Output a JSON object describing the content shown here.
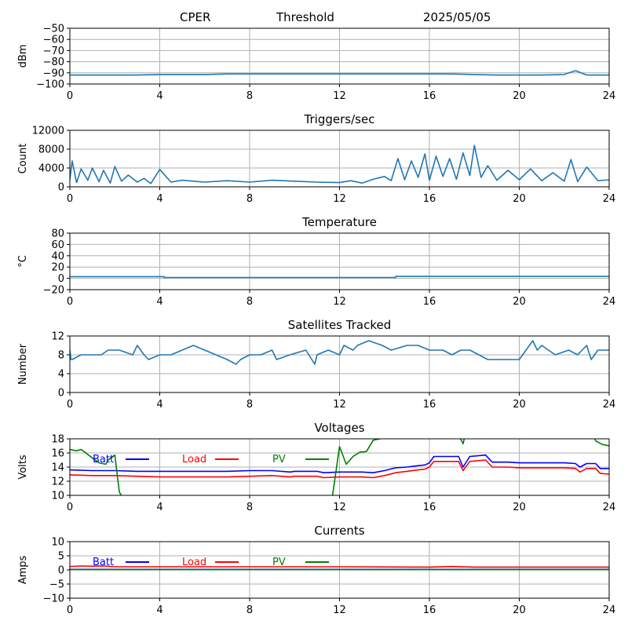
{
  "header": {
    "site": "CPER",
    "mode": "Threshold",
    "date": "2025/05/05"
  },
  "colors": {
    "series": "#1f77b4",
    "batt": "#0000ff",
    "load": "#ff0000",
    "pv": "#008000",
    "grid": "#b0b0b0"
  },
  "chart_data": [
    {
      "id": "threshold",
      "type": "line",
      "title": "",
      "xlabel": "",
      "ylabel": "dBm",
      "xlim": [
        0,
        24
      ],
      "ylim": [
        -100,
        -50
      ],
      "xticks": [
        0,
        4,
        8,
        12,
        16,
        20,
        24
      ],
      "yticks": [
        -100,
        -90,
        -80,
        -70,
        -60,
        -50
      ],
      "grid": true,
      "series": [
        {
          "color": "#1f77b4",
          "x": [
            0,
            1,
            2,
            3,
            4,
            5,
            6,
            7,
            8,
            9,
            10,
            11,
            12,
            13,
            14,
            15,
            16,
            17,
            18,
            19,
            20,
            21,
            22,
            22.5,
            23,
            24
          ],
          "y": [
            -92,
            -92,
            -92,
            -92,
            -91.5,
            -91.5,
            -91.5,
            -91,
            -91,
            -91,
            -91,
            -91,
            -91,
            -91,
            -91,
            -91,
            -91,
            -91,
            -91.5,
            -92,
            -92,
            -92,
            -91.5,
            -88,
            -92,
            -92
          ]
        }
      ]
    },
    {
      "id": "triggers",
      "type": "line",
      "title": "Triggers/sec",
      "xlabel": "",
      "ylabel": "Count",
      "xlim": [
        0,
        24
      ],
      "ylim": [
        0,
        12000
      ],
      "xticks": [
        0,
        4,
        8,
        12,
        16,
        20,
        24
      ],
      "yticks": [
        0,
        4000,
        8000,
        12000
      ],
      "grid": true,
      "series": [
        {
          "color": "#1f77b4",
          "x": [
            0,
            0.1,
            0.3,
            0.5,
            0.8,
            1,
            1.3,
            1.5,
            1.8,
            2,
            2.3,
            2.6,
            3,
            3.3,
            3.6,
            4,
            4.5,
            5,
            6,
            7,
            8,
            9,
            10,
            11,
            12,
            12.5,
            13,
            13.5,
            14,
            14.3,
            14.6,
            14.9,
            15.2,
            15.5,
            15.8,
            16,
            16.3,
            16.6,
            16.9,
            17.2,
            17.5,
            17.8,
            18,
            18.3,
            18.6,
            19,
            19.5,
            20,
            20.5,
            21,
            21.5,
            22,
            22.3,
            22.6,
            23,
            23.5,
            24
          ],
          "y": [
            1500,
            5500,
            900,
            3800,
            1400,
            4000,
            1100,
            3500,
            800,
            4300,
            1200,
            2500,
            1000,
            1800,
            700,
            3700,
            1000,
            1400,
            1000,
            1300,
            1000,
            1400,
            1200,
            1000,
            900,
            1300,
            800,
            1600,
            2200,
            1300,
            6000,
            1500,
            5500,
            2000,
            7000,
            1400,
            6500,
            2200,
            6000,
            1600,
            7200,
            2400,
            8800,
            2000,
            4500,
            1400,
            3500,
            1500,
            3800,
            1300,
            3000,
            1200,
            5800,
            1100,
            4200,
            1300,
            1500
          ]
        }
      ]
    },
    {
      "id": "temperature",
      "type": "line",
      "title": "Temperature",
      "xlabel": "",
      "ylabel": "°C",
      "xlim": [
        0,
        24
      ],
      "ylim": [
        -20,
        80
      ],
      "xticks": [
        0,
        4,
        8,
        12,
        16,
        20,
        24
      ],
      "yticks": [
        -20,
        0,
        20,
        40,
        60,
        80
      ],
      "grid": true,
      "series": [
        {
          "color": "#1f77b4",
          "x": [
            0,
            4.2,
            4.2,
            14.5,
            14.5,
            24
          ],
          "y": [
            3,
            3,
            1.5,
            1.5,
            3.5,
            3.5
          ]
        }
      ]
    },
    {
      "id": "satellites",
      "type": "line",
      "title": "Satellites Tracked",
      "xlabel": "",
      "ylabel": "Number",
      "xlim": [
        0,
        24
      ],
      "ylim": [
        0,
        12
      ],
      "xticks": [
        0,
        4,
        8,
        12,
        16,
        20,
        24
      ],
      "yticks": [
        0,
        4,
        8,
        12
      ],
      "grid": true,
      "series": [
        {
          "color": "#1f77b4",
          "x": [
            0,
            0.05,
            0.1,
            0.5,
            1.4,
            1.7,
            2.2,
            2.8,
            3.0,
            3.3,
            3.5,
            4,
            4.5,
            5,
            5.5,
            6,
            6.5,
            7,
            7.4,
            7.6,
            8,
            8.5,
            9,
            9.2,
            9.8,
            10.5,
            10.9,
            11,
            11.5,
            12,
            12.2,
            12.6,
            12.8,
            13.3,
            13.9,
            14.3,
            15,
            15.5,
            16,
            16.6,
            17,
            17.4,
            17.8,
            18.2,
            18.6,
            19,
            19.6,
            20,
            20.6,
            20.8,
            21,
            21.6,
            22.2,
            22.6,
            23,
            23.2,
            23.5,
            24
          ],
          "y": [
            9,
            7,
            7,
            8,
            8,
            9,
            9,
            8,
            10,
            8,
            7,
            8,
            8,
            9,
            10,
            9,
            8,
            7,
            6,
            7,
            8,
            8,
            9,
            7,
            8,
            9,
            6,
            8,
            9,
            8,
            10,
            9,
            10,
            11,
            10,
            9,
            10,
            10,
            9,
            9,
            8,
            9,
            9,
            8,
            7,
            7,
            7,
            7,
            11,
            9,
            10,
            8,
            9,
            8,
            10,
            7,
            9,
            9
          ]
        }
      ]
    },
    {
      "id": "voltages",
      "type": "line",
      "title": "Voltages",
      "xlabel": "",
      "ylabel": "Volts",
      "xlim": [
        0,
        24
      ],
      "ylim": [
        10,
        18
      ],
      "xticks": [
        0,
        4,
        8,
        12,
        16,
        20,
        24
      ],
      "yticks": [
        10,
        12,
        14,
        16,
        18
      ],
      "grid": true,
      "legend": "top-left",
      "series": [
        {
          "name": "Batt",
          "color": "#0000ff",
          "x": [
            0,
            1,
            2,
            3,
            4,
            5,
            6,
            7,
            8,
            9,
            9.8,
            10,
            11,
            11.3,
            12,
            13,
            13.5,
            14,
            14.5,
            15,
            15.5,
            15.8,
            16,
            16.2,
            17,
            17.3,
            17.5,
            17.8,
            18.5,
            18.8,
            19.5,
            20,
            21,
            22,
            22.5,
            22.7,
            23,
            23.4,
            23.6,
            24
          ],
          "y": [
            13.6,
            13.5,
            13.5,
            13.4,
            13.4,
            13.4,
            13.4,
            13.4,
            13.5,
            13.5,
            13.3,
            13.4,
            13.4,
            13.2,
            13.3,
            13.3,
            13.2,
            13.5,
            13.9,
            14.0,
            14.2,
            14.3,
            14.6,
            15.5,
            15.5,
            15.5,
            14.0,
            15.5,
            15.7,
            14.7,
            14.7,
            14.6,
            14.6,
            14.6,
            14.5,
            14.0,
            14.5,
            14.5,
            13.8,
            13.8
          ]
        },
        {
          "name": "Load",
          "color": "#ff0000",
          "x": [
            0,
            1,
            2,
            3,
            4,
            5,
            6,
            7,
            8,
            9,
            9.8,
            10,
            11,
            11.3,
            12,
            13,
            13.5,
            14,
            14.5,
            15,
            15.5,
            15.8,
            16,
            16.2,
            17,
            17.3,
            17.5,
            17.8,
            18.5,
            18.8,
            19.5,
            20,
            21,
            22,
            22.5,
            22.7,
            23,
            23.4,
            23.6,
            24
          ],
          "y": [
            12.9,
            12.8,
            12.8,
            12.7,
            12.6,
            12.6,
            12.6,
            12.6,
            12.7,
            12.8,
            12.6,
            12.7,
            12.7,
            12.5,
            12.6,
            12.6,
            12.5,
            12.8,
            13.2,
            13.4,
            13.6,
            13.7,
            14.0,
            14.8,
            14.8,
            14.8,
            13.5,
            14.8,
            15.0,
            14.0,
            14.0,
            13.9,
            13.9,
            13.9,
            13.8,
            13.3,
            13.8,
            13.8,
            13.1,
            13.0
          ]
        },
        {
          "name": "PV",
          "color": "#008000",
          "x": [
            0,
            0.3,
            0.5,
            1.0,
            1.3,
            1.6,
            1.7,
            2.0,
            2.2,
            2.6,
            11.6,
            12.0,
            12.3,
            12.6,
            12.9,
            13.2,
            13.5,
            13.8,
            14.0,
            14.2,
            17.3,
            17.5,
            17.7,
            23.2,
            23.4,
            23.7,
            24
          ],
          "y": [
            16.5,
            16.3,
            16.5,
            15.3,
            14.6,
            14.4,
            15.0,
            15.7,
            10.5,
            8.0,
            8.0,
            16.9,
            14.4,
            15.5,
            16.1,
            16.2,
            17.8,
            18.0,
            19.5,
            20.5,
            18.5,
            17.3,
            20.0,
            19.5,
            17.7,
            17.2,
            17.0
          ]
        }
      ]
    },
    {
      "id": "currents",
      "type": "line",
      "title": "Currents",
      "xlabel": "",
      "ylabel": "Amps",
      "xlim": [
        0,
        24
      ],
      "ylim": [
        -10,
        10
      ],
      "xticks": [
        0,
        4,
        8,
        12,
        16,
        20,
        24
      ],
      "yticks": [
        -10,
        -5,
        0,
        5,
        10
      ],
      "grid": true,
      "legend": "top-left",
      "series": [
        {
          "name": "Batt",
          "color": "#0000ff",
          "x": [
            0,
            24
          ],
          "y": [
            0.2,
            0.2
          ]
        },
        {
          "name": "Load",
          "color": "#ff0000",
          "x": [
            0,
            0.5,
            1,
            1.5,
            2,
            4,
            8,
            12,
            16,
            17,
            18,
            20,
            24
          ],
          "y": [
            1.2,
            1.4,
            1.3,
            1.4,
            1.1,
            1.1,
            1.1,
            1.1,
            1.0,
            1.2,
            1.0,
            1.0,
            1.0
          ]
        },
        {
          "name": "PV",
          "color": "#008000",
          "x": [
            0,
            24
          ],
          "y": [
            0.1,
            0.1
          ]
        }
      ]
    }
  ]
}
